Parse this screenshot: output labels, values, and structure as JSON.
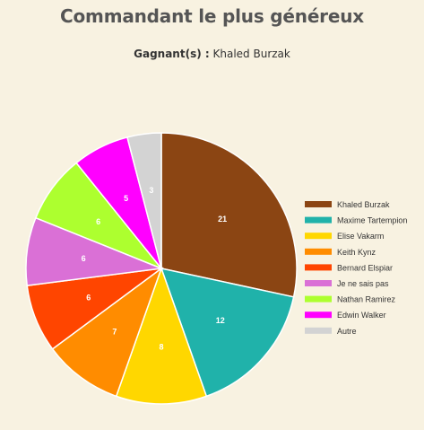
{
  "header": {
    "title": "Commandant le plus généreux",
    "winner_label": "Gagnant(s) :",
    "winner_name": "Khaled Burzak"
  },
  "chart_data": {
    "type": "pie",
    "title": "",
    "legend_position": "right",
    "slices": [
      {
        "label": "Khaled Burzak",
        "value": 21,
        "color": "#8b4513"
      },
      {
        "label": "Maxime Tartempion",
        "value": 12,
        "color": "#20b2aa"
      },
      {
        "label": "Elise Vakarm",
        "value": 8,
        "color": "#ffd700"
      },
      {
        "label": "Keith Kynz",
        "value": 7,
        "color": "#ff8c00"
      },
      {
        "label": "Bernard Elspiar",
        "value": 6,
        "color": "#ff4500"
      },
      {
        "label": "Je ne sais pas",
        "value": 6,
        "color": "#da70d6"
      },
      {
        "label": "Nathan Ramirez",
        "value": 6,
        "color": "#adff2f"
      },
      {
        "label": "Edwin Walker",
        "value": 5,
        "color": "#ff00ff"
      },
      {
        "label": "Autre",
        "value": 3,
        "color": "#d3d3d3"
      }
    ]
  }
}
